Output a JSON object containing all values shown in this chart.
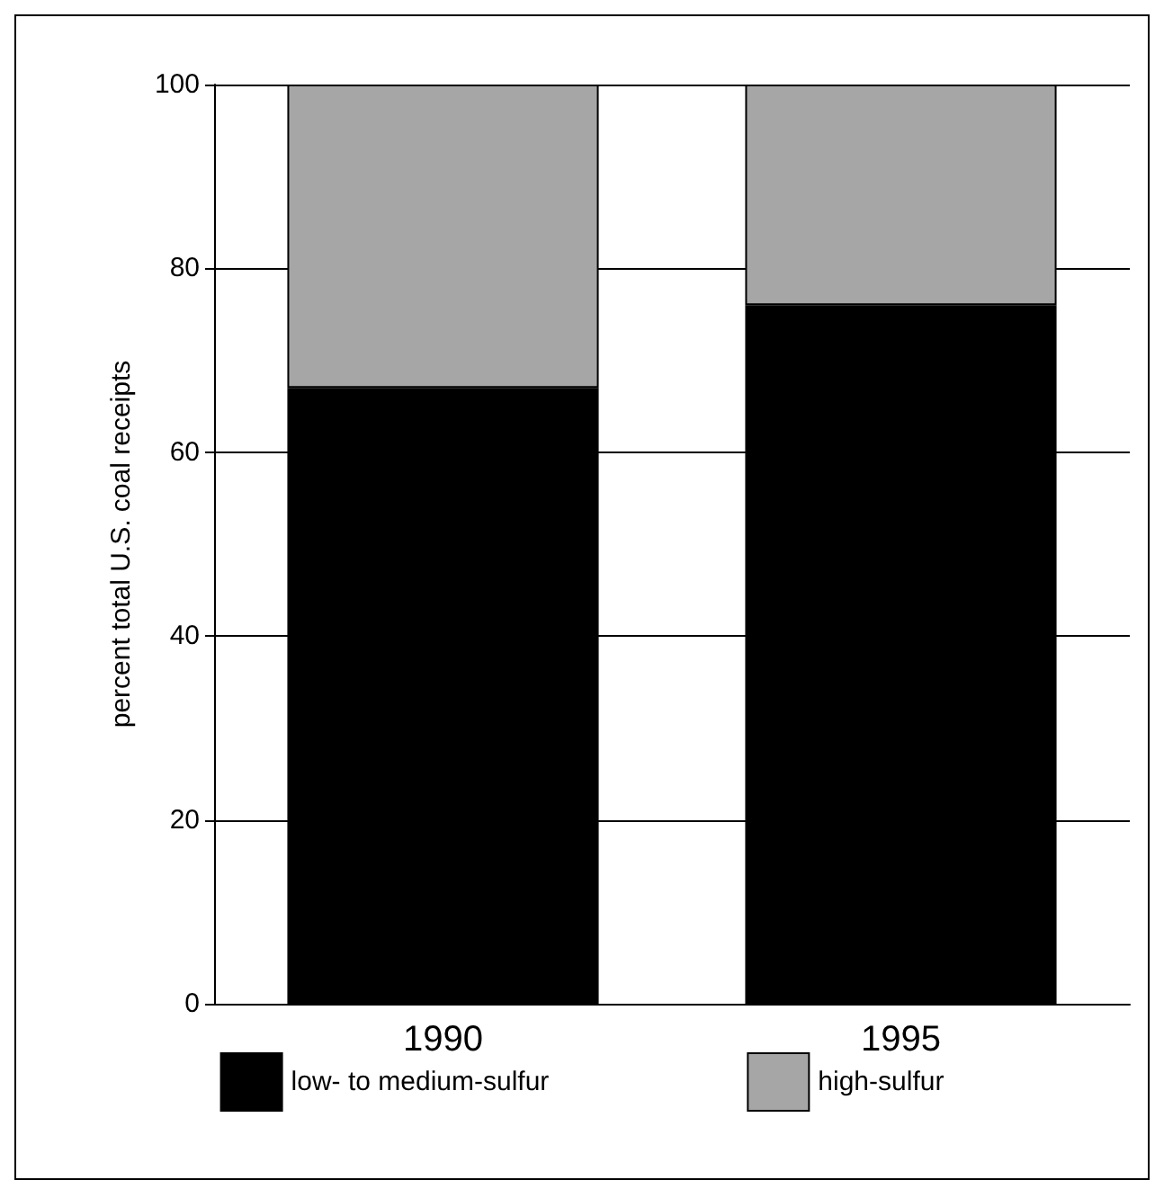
{
  "chart_data": {
    "type": "bar",
    "stacked": true,
    "categories": [
      "1990",
      "1995"
    ],
    "series": [
      {
        "name": "low- to medium-sulfur",
        "color": "#000000",
        "values": [
          67,
          76
        ]
      },
      {
        "name": "high-sulfur",
        "color": "#a6a6a6",
        "values": [
          33,
          24
        ]
      }
    ],
    "ylabel": "percent total U.S. coal receipts",
    "ylim": [
      0,
      100
    ],
    "yticks": [
      0,
      20,
      40,
      60,
      80,
      100
    ],
    "grid": "y",
    "legend": "bottom"
  }
}
